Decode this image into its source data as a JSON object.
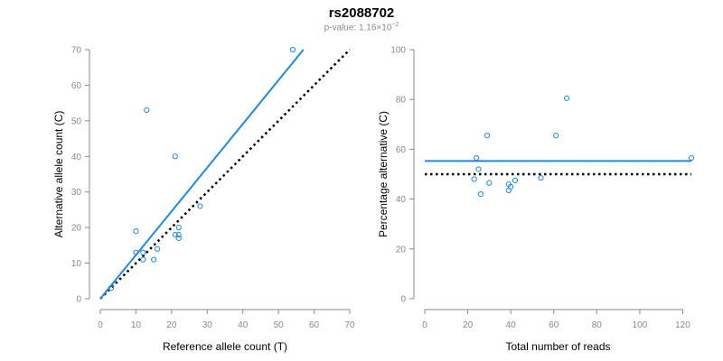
{
  "header": {
    "title": "rs2088702",
    "pvalue_prefix": "p-value: 1.16×10",
    "pvalue_exp": "−2"
  },
  "colors": {
    "fit": "#1e88e5",
    "points": "#1e88e5",
    "reference": "#000000",
    "axis": "#888888"
  },
  "chart_data": [
    {
      "type": "scatter",
      "xlabel": "Reference allele count (T)",
      "ylabel": "Alternative allele count (C)",
      "xlim": [
        0,
        70
      ],
      "ylim": [
        0,
        70
      ],
      "xticks": [
        0,
        10,
        20,
        30,
        40,
        50,
        60,
        70
      ],
      "yticks": [
        0,
        10,
        20,
        30,
        40,
        50,
        60,
        70
      ],
      "points": [
        {
          "x": 3,
          "y": 3
        },
        {
          "x": 10,
          "y": 19
        },
        {
          "x": 10,
          "y": 13
        },
        {
          "x": 12,
          "y": 13
        },
        {
          "x": 12,
          "y": 11
        },
        {
          "x": 13,
          "y": 53
        },
        {
          "x": 15,
          "y": 11
        },
        {
          "x": 16,
          "y": 14
        },
        {
          "x": 21,
          "y": 40
        },
        {
          "x": 21,
          "y": 18
        },
        {
          "x": 22,
          "y": 20
        },
        {
          "x": 22,
          "y": 18
        },
        {
          "x": 22,
          "y": 17
        },
        {
          "x": 28,
          "y": 26
        },
        {
          "x": 54,
          "y": 70
        }
      ],
      "fit_line": {
        "x": [
          0,
          57
        ],
        "y": [
          0,
          70
        ]
      },
      "reference_line": {
        "x": [
          0,
          70
        ],
        "y": [
          0,
          70
        ]
      }
    },
    {
      "type": "scatter",
      "xlabel": "Total number of reads",
      "ylabel": "Percentage alternative (C)",
      "xlim": [
        0,
        124
      ],
      "ylim": [
        0,
        100
      ],
      "xticks": [
        0,
        20,
        40,
        60,
        80,
        100,
        120
      ],
      "yticks": [
        0,
        20,
        40,
        60,
        80,
        100
      ],
      "points": [
        {
          "x": 23,
          "y": 48
        },
        {
          "x": 24,
          "y": 56.5
        },
        {
          "x": 25,
          "y": 52
        },
        {
          "x": 26,
          "y": 42
        },
        {
          "x": 29,
          "y": 65.5
        },
        {
          "x": 30,
          "y": 46.5
        },
        {
          "x": 39,
          "y": 43.5
        },
        {
          "x": 39,
          "y": 46
        },
        {
          "x": 40,
          "y": 45
        },
        {
          "x": 42,
          "y": 47.5
        },
        {
          "x": 54,
          "y": 48.5
        },
        {
          "x": 61,
          "y": 65.5
        },
        {
          "x": 66,
          "y": 80.5
        },
        {
          "x": 124,
          "y": 56.5
        }
      ],
      "fit_line": {
        "x": [
          0,
          124
        ],
        "y": [
          55.3,
          55.3
        ]
      },
      "reference_line": {
        "x": [
          0,
          124
        ],
        "y": [
          50,
          50
        ]
      }
    }
  ]
}
